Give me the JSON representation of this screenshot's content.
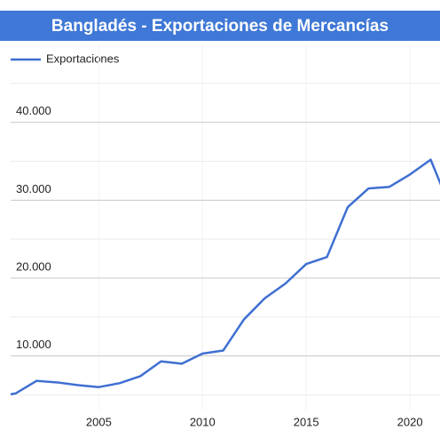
{
  "chart_data": {
    "type": "line",
    "title": "Bangladés - Exportaciones de Mercancías",
    "x": [
      2000,
      2001,
      2002,
      2003,
      2004,
      2005,
      2006,
      2007,
      2008,
      2009,
      2010,
      2011,
      2012,
      2013,
      2014,
      2015,
      2016,
      2017,
      2018,
      2019,
      2020,
      2021,
      2022
    ],
    "series": [
      {
        "name": "Exportaciones",
        "color": "#3f6fd1",
        "values": [
          4700,
          5200,
          6800,
          6600,
          6250,
          6000,
          6500,
          7400,
          9300,
          9000,
          10300,
          10700,
          14700,
          17400,
          19300,
          21800,
          22700,
          29100,
          31500,
          31700,
          33300,
          35200,
          28700
        ]
      }
    ],
    "xlim": [
      2000.75,
      2021.45
    ],
    "xticks": [
      2005,
      2010,
      2015,
      2020
    ],
    "ylim": [
      3000,
      50000
    ],
    "yticks": [
      {
        "value": 10000,
        "label": "10.000"
      },
      {
        "value": 20000,
        "label": "20.000"
      },
      {
        "value": 30000,
        "label": "30.000"
      },
      {
        "value": 40000,
        "label": "40.000"
      }
    ],
    "minor_yticks": [
      5000,
      15000,
      25000,
      35000,
      45000
    ],
    "grid": true,
    "legend": "top-left"
  }
}
